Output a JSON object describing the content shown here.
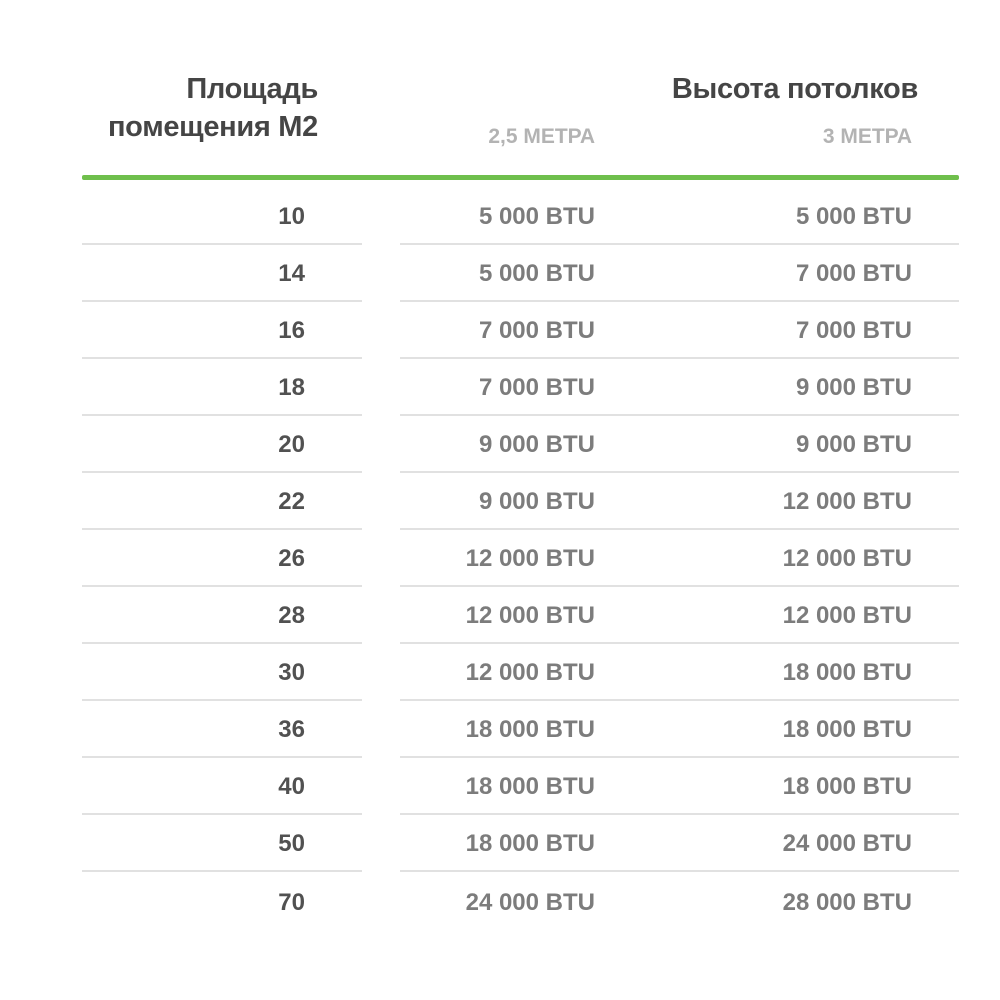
{
  "table": {
    "header": {
      "area_line1": "Площадь",
      "area_line2": "помещения М2",
      "height_title": "Высота потолков",
      "sub_25": "2,5 МЕТРА",
      "sub_3": "3 МЕТРА"
    },
    "rows": [
      {
        "area": "10",
        "btu_25": "5 000 BTU",
        "btu_3": "5 000 BTU"
      },
      {
        "area": "14",
        "btu_25": "5 000 BTU",
        "btu_3": "7 000 BTU"
      },
      {
        "area": "16",
        "btu_25": "7 000 BTU",
        "btu_3": "7 000 BTU"
      },
      {
        "area": "18",
        "btu_25": "7 000 BTU",
        "btu_3": "9 000 BTU"
      },
      {
        "area": "20",
        "btu_25": "9 000 BTU",
        "btu_3": "9 000 BTU"
      },
      {
        "area": "22",
        "btu_25": "9 000 BTU",
        "btu_3": "12 000 BTU"
      },
      {
        "area": "26",
        "btu_25": "12 000 BTU",
        "btu_3": "12 000 BTU"
      },
      {
        "area": "28",
        "btu_25": "12 000 BTU",
        "btu_3": "12 000 BTU"
      },
      {
        "area": "30",
        "btu_25": "12 000 BTU",
        "btu_3": "18 000 BTU"
      },
      {
        "area": "36",
        "btu_25": "18 000 BTU",
        "btu_3": "18 000 BTU"
      },
      {
        "area": "40",
        "btu_25": "18 000 BTU",
        "btu_3": "18 000 BTU"
      },
      {
        "area": "50",
        "btu_25": "18 000 BTU",
        "btu_3": "24 000 BTU"
      },
      {
        "area": "70",
        "btu_25": "24 000 BTU",
        "btu_3": "28 000 BTU"
      }
    ]
  },
  "colors": {
    "accent_green": "#6fbf4c",
    "header_text": "#454545",
    "area_text": "#515151",
    "btu_text": "#7c7c7c",
    "subheader_text": "#b3b3b3",
    "separator": "#e1e1e1"
  },
  "chart_data": {
    "type": "table",
    "title": "Подбор BTU кондиционера по площади помещения и высоте потолков",
    "columns": [
      "Площадь помещения М2",
      "Высота потолков 2,5 метра",
      "Высота потолков 3 метра"
    ],
    "rows": [
      [
        10,
        "5 000 BTU",
        "5 000 BTU"
      ],
      [
        14,
        "5 000 BTU",
        "7 000 BTU"
      ],
      [
        16,
        "7 000 BTU",
        "7 000 BTU"
      ],
      [
        18,
        "7 000 BTU",
        "9 000 BTU"
      ],
      [
        20,
        "9 000 BTU",
        "9 000 BTU"
      ],
      [
        22,
        "9 000 BTU",
        "12 000 BTU"
      ],
      [
        26,
        "12 000 BTU",
        "12 000 BTU"
      ],
      [
        28,
        "12 000 BTU",
        "12 000 BTU"
      ],
      [
        30,
        "12 000 BTU",
        "18 000 BTU"
      ],
      [
        36,
        "18 000 BTU",
        "18 000 BTU"
      ],
      [
        40,
        "18 000 BTU",
        "18 000 BTU"
      ],
      [
        50,
        "18 000 BTU",
        "24 000 BTU"
      ],
      [
        70,
        "24 000 BTU",
        "28 000 BTU"
      ]
    ],
    "layout": {
      "grid": "horizontal separators only",
      "legend_position": "none"
    }
  }
}
